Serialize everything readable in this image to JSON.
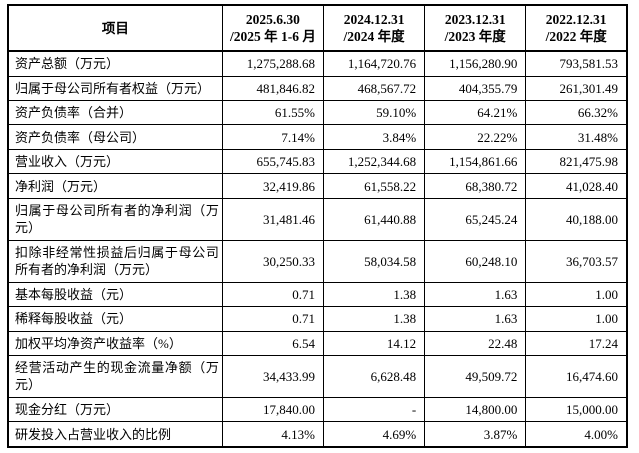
{
  "colors": {
    "border": "#000000",
    "text": "#000000",
    "background": "#ffffff"
  },
  "table": {
    "item_header": "项目",
    "period_headers": [
      {
        "line1": "2025.6.30",
        "line2": "/2025 年 1-6 月"
      },
      {
        "line1": "2024.12.31",
        "line2": "/2024 年度"
      },
      {
        "line1": "2023.12.31",
        "line2": "/2023 年度"
      },
      {
        "line1": "2022.12.31",
        "line2": "/2022 年度"
      }
    ],
    "rows": [
      {
        "label": "资产总额（万元）",
        "values": [
          "1,275,288.68",
          "1,164,720.76",
          "1,156,280.90",
          "793,581.53"
        ]
      },
      {
        "label": "归属于母公司所有者权益（万元）",
        "values": [
          "481,846.82",
          "468,567.72",
          "404,355.79",
          "261,301.49"
        ]
      },
      {
        "label": "资产负债率（合并）",
        "values": [
          "61.55%",
          "59.10%",
          "64.21%",
          "66.32%"
        ]
      },
      {
        "label": "资产负债率（母公司）",
        "values": [
          "7.14%",
          "3.84%",
          "22.22%",
          "31.48%"
        ]
      },
      {
        "label": "营业收入（万元）",
        "values": [
          "655,745.83",
          "1,252,344.68",
          "1,154,861.66",
          "821,475.98"
        ]
      },
      {
        "label": "净利润（万元）",
        "values": [
          "32,419.86",
          "61,558.22",
          "68,380.72",
          "41,028.40"
        ]
      },
      {
        "label": "归属于母公司所有者的净利润（万元）",
        "values": [
          "31,481.46",
          "61,440.88",
          "65,245.24",
          "40,188.00"
        ]
      },
      {
        "label": "扣除非经常性损益后归属于母公司所有者的净利润（万元）",
        "values": [
          "30,250.33",
          "58,034.58",
          "60,248.10",
          "36,703.57"
        ]
      },
      {
        "label": "基本每股收益（元）",
        "values": [
          "0.71",
          "1.38",
          "1.63",
          "1.00"
        ]
      },
      {
        "label": "稀释每股收益（元）",
        "values": [
          "0.71",
          "1.38",
          "1.63",
          "1.00"
        ]
      },
      {
        "label": "加权平均净资产收益率（%）",
        "values": [
          "6.54",
          "14.12",
          "22.48",
          "17.24"
        ]
      },
      {
        "label": "经营活动产生的现金流量净额（万元）",
        "values": [
          "34,433.99",
          "6,628.48",
          "49,509.72",
          "16,474.60"
        ]
      },
      {
        "label": "现金分红（万元）",
        "values": [
          "17,840.00",
          "-",
          "14,800.00",
          "15,000.00"
        ]
      },
      {
        "label": "研发投入占营业收入的比例",
        "values": [
          "4.13%",
          "4.69%",
          "3.87%",
          "4.00%"
        ]
      }
    ]
  }
}
